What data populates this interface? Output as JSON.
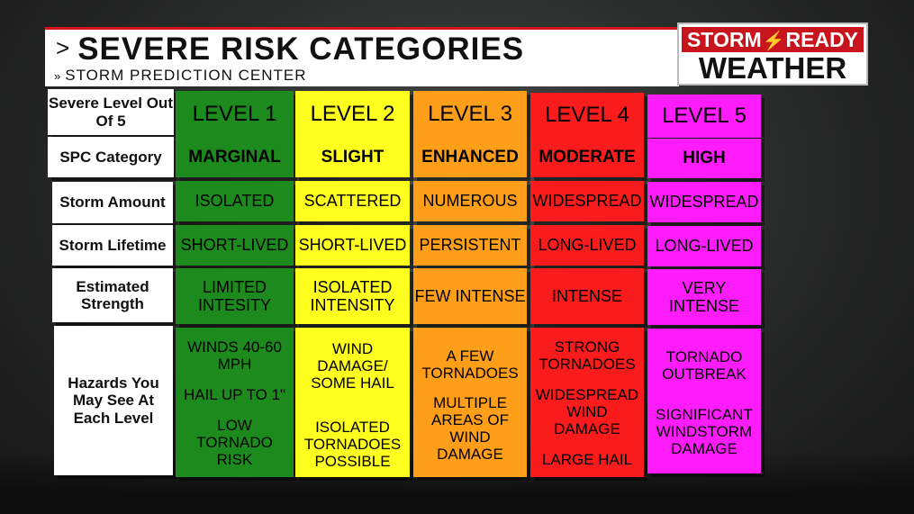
{
  "header": {
    "title": "SEVERE RISK CATEGORIES",
    "subtitle": "STORM PREDICTION CENTER"
  },
  "logo": {
    "line1_left": "STORM",
    "line1_right": "READY",
    "line2": "WEATHER"
  },
  "colors": {
    "level1": "#1d8a1d",
    "level2": "#ffff1f",
    "level3": "#ff9e18",
    "level4": "#fa1c1c",
    "level5": "#ff1cfb",
    "accent": "#d4131c"
  },
  "row_labels": [
    "Severe Level Out Of 5",
    "SPC Category",
    "Storm Amount",
    "Storm Lifetime",
    "Estimated Strength",
    "Hazards You May See At Each Level"
  ],
  "levels": [
    {
      "level": "LEVEL 1",
      "category": "MARGINAL",
      "amount": "ISOLATED",
      "lifetime": "SHORT-LIVED",
      "strength": "LIMITED INTESITY",
      "hazards": [
        "WINDS 40-60 MPH",
        "HAIL UP TO 1\"",
        "LOW TORNADO RISK"
      ]
    },
    {
      "level": "LEVEL 2",
      "category": "SLIGHT",
      "amount": "SCATTERED",
      "lifetime": "SHORT-LIVED",
      "strength": "ISOLATED INTENSITY",
      "hazards": [
        "WIND DAMAGE/ SOME HAIL",
        "ISOLATED TORNADOES POSSIBLE"
      ]
    },
    {
      "level": "LEVEL 3",
      "category": "ENHANCED",
      "amount": "NUMEROUS",
      "lifetime": "PERSISTENT",
      "strength": "FEW INTENSE",
      "hazards": [
        "A FEW TORNADOES",
        "MULTIPLE AREAS OF WIND DAMAGE"
      ]
    },
    {
      "level": "LEVEL 4",
      "category": "MODERATE",
      "amount": "WIDESPREAD",
      "lifetime": "LONG-LIVED",
      "strength": "INTENSE",
      "hazards": [
        "STRONG TORNADOES",
        "WIDESPREAD WIND DAMAGE",
        "LARGE HAIL"
      ]
    },
    {
      "level": "LEVEL 5",
      "category": "HIGH",
      "amount": "WIDESPREAD",
      "lifetime": "LONG-LIVED",
      "strength": "VERY INTENSE",
      "hazards": [
        "TORNADO OUTBREAK",
        "SIGNIFICANT WINDSTORM DAMAGE"
      ]
    }
  ]
}
